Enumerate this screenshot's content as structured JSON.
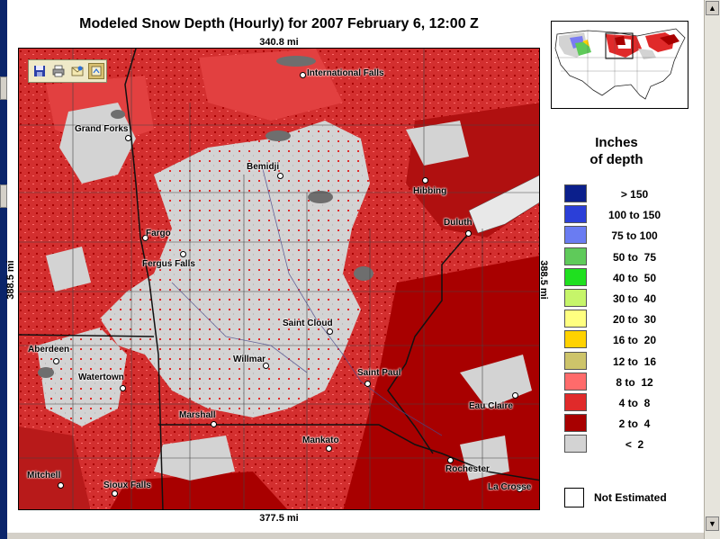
{
  "map": {
    "title": "Modeled Snow Depth (Hourly) for 2007 February 6, 12:00 Z",
    "width_label": "340.8 mi",
    "width_label_bottom": "377.5 mi",
    "height_label": "388.5 mi",
    "cities": [
      {
        "name": "International Falls"
      },
      {
        "name": "Grand Forks"
      },
      {
        "name": "Bemidji"
      },
      {
        "name": "Hibbing"
      },
      {
        "name": "Duluth"
      },
      {
        "name": "Fargo"
      },
      {
        "name": "Fergus Falls"
      },
      {
        "name": "Saint Cloud"
      },
      {
        "name": "Aberdeen"
      },
      {
        "name": "Willmar"
      },
      {
        "name": "Saint Paul"
      },
      {
        "name": "Watertown"
      },
      {
        "name": "Eau Claire"
      },
      {
        "name": "Marshall"
      },
      {
        "name": "Mankato"
      },
      {
        "name": "Rochester"
      },
      {
        "name": "Mitchell"
      },
      {
        "name": "Sioux Falls"
      },
      {
        "name": "La Crosse"
      }
    ]
  },
  "toolbar": {
    "icons": [
      "save-icon",
      "print-icon",
      "email-icon",
      "export-icon"
    ]
  },
  "legend": {
    "title_line1": "Inches",
    "title_line2": "of depth",
    "entries": [
      {
        "label": "> 150",
        "color": "#0b1f8c"
      },
      {
        "label": "100 to 150",
        "color": "#2b3fd8"
      },
      {
        "label": "75 to 100",
        "color": "#6a7cf2"
      },
      {
        "label": "50 to  75",
        "color": "#5fca5a"
      },
      {
        "label": "40 to  50",
        "color": "#1fe01f"
      },
      {
        "label": "30 to  40",
        "color": "#c6f56a"
      },
      {
        "label": "20 to  30",
        "color": "#ffff80"
      },
      {
        "label": "16 to  20",
        "color": "#ffd200"
      },
      {
        "label": "12 to  16",
        "color": "#cdc46a"
      },
      {
        "label": "8 to  12",
        "color": "#ff6b6b"
      },
      {
        "label": "4 to  8",
        "color": "#e02a2a"
      },
      {
        "label": "2 to  4",
        "color": "#a80000"
      },
      {
        "label": "<  2",
        "color": "#d3d3d3"
      }
    ],
    "not_estimated": "Not Estimated"
  },
  "colors": {
    "background_red": "#d32f2f",
    "dark_red": "#a80000",
    "light_gray": "#d3d3d3",
    "water": "#7a7a7a"
  }
}
